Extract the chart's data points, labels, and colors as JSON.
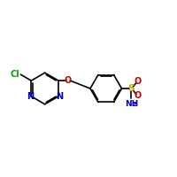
{
  "bg_color": "#ffffff",
  "bond_color": "#000000",
  "cl_color": "#00aa00",
  "n_color": "#0000cc",
  "o_color": "#cc0000",
  "s_color": "#ccaa00",
  "nh2_color": "#0000cc",
  "lw": 1.2,
  "dbo": 0.06,
  "figsize": [
    2.0,
    2.0
  ],
  "dpi": 100,
  "xlim": [
    0,
    10
  ],
  "ylim": [
    2,
    8
  ]
}
